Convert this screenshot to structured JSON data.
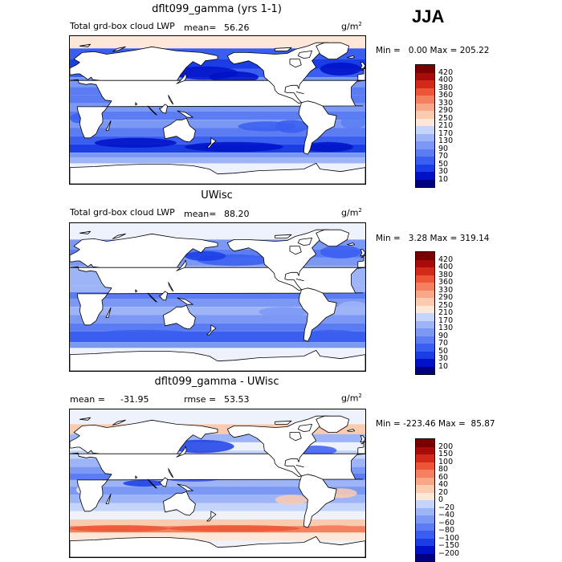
{
  "season": "JJA",
  "palette": {
    "lwp": [
      "#000080",
      "#0011c8",
      "#1a3de6",
      "#3a5ef0",
      "#5b7cf3",
      "#7b98f5",
      "#9db4f7",
      "#c4d4fa",
      "#eef2fd",
      "#fde7d9",
      "#fbcbb0",
      "#f8a888",
      "#f48060",
      "#ec5636",
      "#d22a18",
      "#a80c0a",
      "#7a0000"
    ],
    "diff": [
      "#000080",
      "#0011c8",
      "#1a3de6",
      "#3a5ef0",
      "#5b7cf3",
      "#7b98f5",
      "#9db4f7",
      "#c4d4fa",
      "#eef2fd",
      "#fde7d9",
      "#fbcbb0",
      "#f8a888",
      "#f48060",
      "#ec5636",
      "#d22a18",
      "#a80c0a",
      "#7a0000"
    ],
    "land": "#ffffff"
  },
  "panels": [
    {
      "title": "dflt099_gamma (yrs 1-1)",
      "label_left": "Total grd-box cloud LWP",
      "label_mean": "mean=",
      "mean_value": "56.26",
      "units": "g/m",
      "units_exp": "2",
      "min_label": "Min =",
      "min_value": "0.00",
      "max_label": "Max =",
      "max_value": "205.22",
      "levels": [
        "420",
        "400",
        "380",
        "360",
        "330",
        "290",
        "250",
        "210",
        "170",
        "130",
        "90",
        "70",
        "50",
        "30",
        "10"
      ]
    },
    {
      "title": "UWisc",
      "label_left": "Total grd-box cloud LWP",
      "label_mean": "mean=",
      "mean_value": "88.20",
      "units": "g/m",
      "units_exp": "2",
      "min_label": "Min =",
      "min_value": "3.28",
      "max_label": "Max =",
      "max_value": "319.14",
      "levels": [
        "420",
        "400",
        "380",
        "360",
        "330",
        "290",
        "250",
        "210",
        "170",
        "130",
        "90",
        "70",
        "50",
        "30",
        "10"
      ]
    },
    {
      "title": "dflt099_gamma - UWisc",
      "label_mean": "mean =",
      "mean_value": "-31.95",
      "label_rmse": "rmse =",
      "rmse_value": "53.53",
      "units": "g/m",
      "units_exp": "2",
      "min_label": "Min =",
      "min_value": "-223.46",
      "max_label": "Max =",
      "max_value": "85.87",
      "levels": [
        "200",
        "150",
        "100",
        "80",
        "60",
        "40",
        "20",
        "0",
        "−20",
        "−40",
        "−60",
        "−80",
        "−100",
        "−150",
        "−200"
      ]
    }
  ],
  "chart_data": [
    {
      "type": "heatmap",
      "title": "dflt099_gamma (yrs 1-1)",
      "variable": "Total grd-box cloud LWP",
      "units": "g/m^2",
      "season": "JJA",
      "mean": 56.26,
      "min": 0.0,
      "max": 205.22,
      "contour_levels": [
        10,
        30,
        50,
        70,
        90,
        130,
        170,
        210,
        250,
        290,
        330,
        360,
        380,
        400,
        420
      ]
    },
    {
      "type": "heatmap",
      "title": "UWisc",
      "variable": "Total grd-box cloud LWP",
      "units": "g/m^2",
      "season": "JJA",
      "mean": 88.2,
      "min": 3.28,
      "max": 319.14,
      "contour_levels": [
        10,
        30,
        50,
        70,
        90,
        130,
        170,
        210,
        250,
        290,
        330,
        360,
        380,
        400,
        420
      ]
    },
    {
      "type": "heatmap",
      "title": "dflt099_gamma - UWisc",
      "units": "g/m^2",
      "season": "JJA",
      "mean": -31.95,
      "rmse": 53.53,
      "min": -223.46,
      "max": 85.87,
      "contour_levels": [
        -200,
        -150,
        -100,
        -80,
        -60,
        -40,
        -20,
        0,
        20,
        40,
        60,
        80,
        100,
        150,
        200
      ]
    }
  ]
}
